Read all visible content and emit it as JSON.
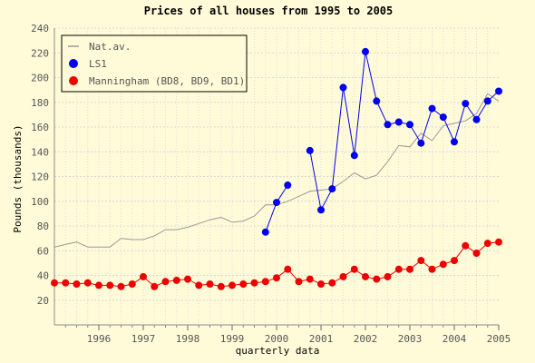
{
  "chart_data": {
    "type": "line",
    "title": "Prices of all houses from 1995 to 2005",
    "xlabel": "quarterly data",
    "ylabel": "Pounds (thousands)",
    "ylim": [
      0,
      240
    ],
    "yticks": [
      "20",
      "40",
      "60",
      "80",
      "100",
      "120",
      "140",
      "160",
      "180",
      "200",
      "220",
      "240"
    ],
    "xlim": [
      1995.0,
      2005.0
    ],
    "xticks": [
      "1996",
      "1997",
      "1998",
      "1999",
      "2000",
      "2001",
      "2002",
      "2003",
      "2004",
      "2005"
    ],
    "grid": true,
    "legend_position": "top-left",
    "series": [
      {
        "name": "Nat.av.",
        "color": "#999999",
        "marker": "none",
        "x": [
          1995.0,
          1995.25,
          1995.5,
          1995.75,
          1996.0,
          1996.25,
          1996.5,
          1996.75,
          1997.0,
          1997.25,
          1997.5,
          1997.75,
          1998.0,
          1998.25,
          1998.5,
          1998.75,
          1999.0,
          1999.25,
          1999.5,
          1999.75,
          2000.0,
          2000.25,
          2000.5,
          2000.75,
          2001.0,
          2001.25,
          2001.5,
          2001.75,
          2002.0,
          2002.25,
          2002.5,
          2002.75,
          2003.0,
          2003.25,
          2003.5,
          2003.75,
          2004.0,
          2004.25,
          2004.5,
          2004.75,
          2005.0
        ],
        "values": [
          63,
          65,
          67,
          63,
          63,
          63,
          70,
          69,
          69,
          72,
          77,
          77,
          79,
          82,
          85,
          87,
          83,
          84,
          88,
          97,
          97,
          100,
          104,
          108,
          109,
          110,
          116,
          123,
          118,
          121,
          132,
          145,
          144,
          155,
          149,
          161,
          163,
          165,
          171,
          187,
          181
        ]
      },
      {
        "name": "LS1",
        "color": "#0000ee",
        "marker": "circle",
        "x": [
          1999.75,
          2000.0,
          2000.25,
          null,
          2000.75,
          2001.0,
          2001.25,
          2001.5,
          2001.75,
          2002.0,
          2002.25,
          2002.5,
          2002.75,
          2003.0,
          2003.25,
          2003.5,
          2003.75,
          2004.0,
          2004.25,
          2004.5,
          2004.75,
          2005.0
        ],
        "values": [
          75,
          99,
          113,
          null,
          141,
          93,
          110,
          192,
          137,
          221,
          181,
          162,
          164,
          162,
          147,
          175,
          168,
          148,
          179,
          166,
          181,
          189
        ]
      },
      {
        "name": "Manningham (BD8, BD9, BD1)",
        "color": "#ee0000",
        "marker": "circle",
        "x": [
          1995.0,
          1995.25,
          1995.5,
          1995.75,
          1996.0,
          1996.25,
          1996.5,
          1996.75,
          1997.0,
          1997.25,
          1997.5,
          1997.75,
          1998.0,
          1998.25,
          1998.5,
          1998.75,
          1999.0,
          1999.25,
          1999.5,
          1999.75,
          2000.0,
          2000.25,
          2000.5,
          2000.75,
          2001.0,
          2001.25,
          2001.5,
          2001.75,
          2002.0,
          2002.25,
          2002.5,
          2002.75,
          2003.0,
          2003.25,
          2003.5,
          2003.75,
          2004.0,
          2004.25,
          2004.5,
          2004.75,
          2005.0
        ],
        "values": [
          34,
          34,
          33,
          34,
          32,
          32,
          31,
          33,
          39,
          31,
          35,
          36,
          37,
          32,
          33,
          31,
          32,
          33,
          34,
          35,
          38,
          45,
          35,
          37,
          33,
          34,
          39,
          45,
          39,
          37,
          39,
          45,
          45,
          52,
          45,
          49,
          52,
          64,
          58,
          66,
          67
        ]
      }
    ]
  }
}
